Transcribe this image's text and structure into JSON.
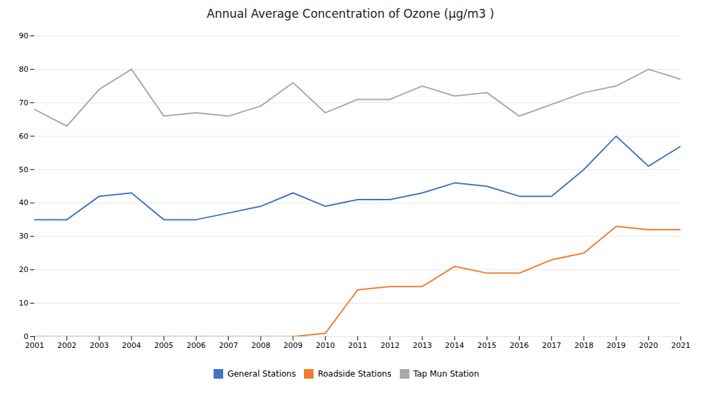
{
  "chart_data": {
    "type": "line",
    "title": "Annual Average Concentration of Ozone (μg/m3 )",
    "x": [
      2001,
      2002,
      2003,
      2004,
      2005,
      2006,
      2007,
      2008,
      2009,
      2010,
      2011,
      2012,
      2013,
      2014,
      2015,
      2016,
      2017,
      2018,
      2019,
      2020,
      2021
    ],
    "series": [
      {
        "name": "General Stations",
        "color": "#4472C4",
        "values": [
          35,
          35,
          42,
          43,
          35,
          35,
          37,
          39,
          43,
          39,
          41,
          41,
          43,
          46,
          45,
          42,
          42,
          50,
          60,
          51,
          57
        ]
      },
      {
        "name": "Roadside Stations",
        "color": "#ED7D31",
        "values": [
          0,
          0,
          0,
          0,
          0,
          0,
          0,
          0,
          0,
          1,
          14,
          15,
          15,
          21,
          19,
          19,
          23,
          25,
          33,
          32,
          32
        ]
      },
      {
        "name": "Tap Mun Station",
        "color": "#A9A9A9",
        "x": [
          2001,
          2002,
          2003,
          2004,
          2005,
          2006,
          2007,
          2008,
          2009,
          2010,
          2011,
          2012,
          2013,
          2014,
          2015,
          2016,
          2018,
          2019,
          2020,
          2021
        ],
        "values": [
          68,
          63,
          74,
          80,
          66,
          67,
          66,
          69,
          76,
          67,
          71,
          71,
          75,
          72,
          73,
          66,
          73,
          75,
          80,
          77
        ]
      }
    ],
    "xlim": [
      2001,
      2021
    ],
    "xticks": [
      2001,
      2002,
      2003,
      2004,
      2005,
      2006,
      2007,
      2008,
      2009,
      2010,
      2011,
      2012,
      2013,
      2014,
      2015,
      2016,
      2017,
      2018,
      2019,
      2020,
      2021
    ],
    "ylim": [
      0,
      90
    ],
    "yticks": [
      0,
      10,
      20,
      30,
      40,
      50,
      60,
      70,
      80,
      90
    ],
    "grid": true,
    "legend": "bottom"
  }
}
